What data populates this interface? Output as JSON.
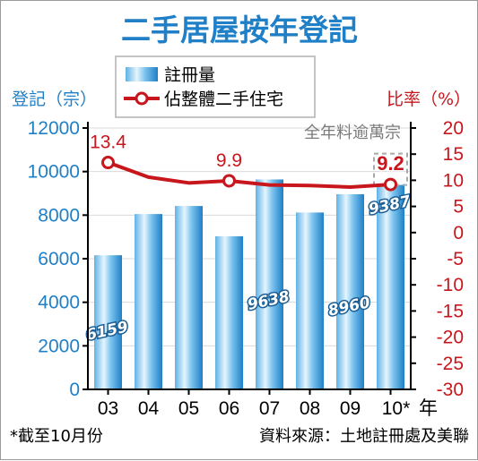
{
  "chart_data": {
    "type": "bar",
    "title": "二手居屋按年登記",
    "categories": [
      "03",
      "04",
      "05",
      "06",
      "07",
      "08",
      "09",
      "10*"
    ],
    "x_suffix": "年",
    "y_left": {
      "label": "登記（宗）",
      "ylim": [
        0,
        12000
      ],
      "ticks": [
        0,
        2000,
        4000,
        6000,
        8000,
        10000,
        12000
      ]
    },
    "y_right": {
      "label": "比率（%）",
      "ylim": [
        -30,
        20
      ],
      "ticks": [
        20,
        15,
        10,
        5,
        0,
        -5,
        -10,
        -15,
        -20,
        -25,
        -30
      ]
    },
    "series": [
      {
        "name": "註冊量",
        "type": "bar",
        "axis": "left",
        "values": [
          6159,
          8050,
          8420,
          7030,
          9638,
          8120,
          8960,
          9387
        ],
        "labels": [
          "6159",
          "",
          "",
          "",
          "9638",
          "",
          "8960",
          "9387"
        ]
      },
      {
        "name": "佔整體二手住宅",
        "type": "line",
        "axis": "right",
        "values": [
          13.4,
          10.6,
          9.5,
          9.9,
          9.1,
          9.0,
          8.7,
          9.2
        ],
        "labels": [
          "13.4",
          "",
          "",
          "9.9",
          "",
          "",
          "",
          "9.2"
        ]
      }
    ],
    "annotation": "全年料逾萬宗",
    "footnote": "*截至10月份",
    "source": "資料來源：土地註冊處及美聯",
    "colors": {
      "bar": "#3aa0dc",
      "line": "#c8161d",
      "left_axis": "#1f7fc7",
      "right_axis": "#c8161d"
    },
    "legend_position": "top-left"
  }
}
